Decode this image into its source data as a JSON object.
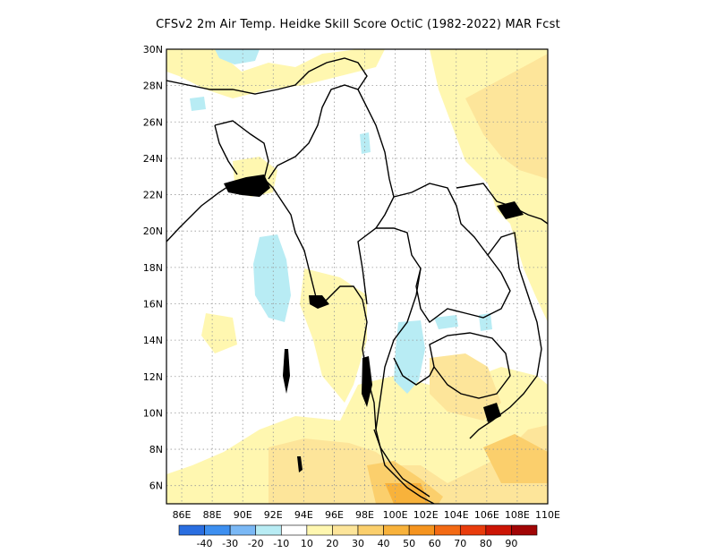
{
  "title": "CFSv2  2m Air Temp. Heidke Skill Score OctiC (1982-2022) MAR Fcst",
  "map": {
    "lon_range": [
      85,
      110
    ],
    "lat_range": [
      5,
      30
    ],
    "lon_ticks": [
      "86E",
      "88E",
      "90E",
      "92E",
      "94E",
      "96E",
      "98E",
      "100E",
      "102E",
      "104E",
      "106E",
      "108E",
      "110E"
    ],
    "lat_ticks": [
      "6N",
      "8N",
      "10N",
      "12N",
      "14N",
      "16N",
      "18N",
      "20N",
      "22N",
      "24N",
      "26N",
      "28N",
      "30N"
    ],
    "grid": "dotted"
  },
  "colorbar": {
    "colors": [
      "#2a6ee0",
      "#3d8ff0",
      "#7ab8f5",
      "#b8ecf4",
      "#ffffff",
      "#fff7b0",
      "#fde59a",
      "#fbcf6c",
      "#f8b23b",
      "#f5941f",
      "#f36a14",
      "#e93c0c",
      "#cc1505",
      "#a10505"
    ],
    "labels": [
      "-40",
      "-30",
      "-20",
      "-10",
      "10",
      "20",
      "30",
      "40",
      "50",
      "60",
      "70",
      "80",
      "90"
    ]
  }
}
